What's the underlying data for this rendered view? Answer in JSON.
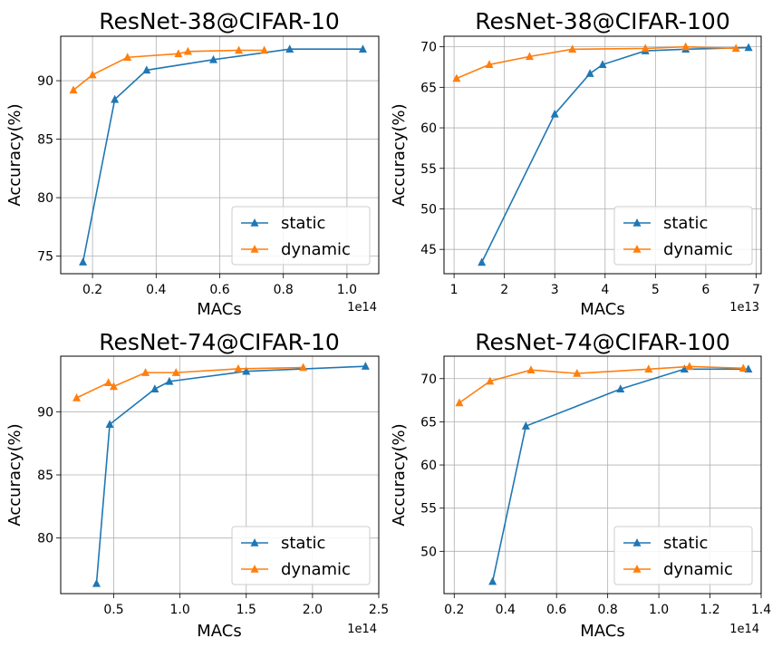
{
  "chart_data": [
    {
      "type": "line",
      "title": "ResNet-38@CIFAR-10",
      "xlabel": "MACs",
      "ylabel": "Accuracy(%)",
      "x_offset_text": "1e14",
      "xlim": [
        0.1,
        1.1
      ],
      "ylim": [
        73.5,
        93.8
      ],
      "xticks": [
        0.2,
        0.4,
        0.6,
        0.8,
        1.0
      ],
      "xtick_labels": [
        "0.2",
        "0.4",
        "0.6",
        "0.8",
        "1.0"
      ],
      "yticks": [
        75,
        80,
        85,
        90
      ],
      "ytick_labels": [
        "75",
        "80",
        "85",
        "90"
      ],
      "grid": true,
      "legend_position": "lower-right",
      "series": [
        {
          "name": "static",
          "color": "#1f77b4",
          "marker": "triangle",
          "x": [
            0.17,
            0.27,
            0.37,
            0.58,
            0.82,
            1.05
          ],
          "y": [
            74.5,
            88.4,
            90.9,
            91.8,
            92.7,
            92.7
          ]
        },
        {
          "name": "dynamic",
          "color": "#ff7f0e",
          "marker": "triangle",
          "x": [
            0.14,
            0.2,
            0.31,
            0.47,
            0.5,
            0.66,
            0.74
          ],
          "y": [
            89.2,
            90.5,
            92.0,
            92.3,
            92.5,
            92.6,
            92.6
          ]
        }
      ]
    },
    {
      "type": "line",
      "title": "ResNet-38@CIFAR-100",
      "xlabel": "MACs",
      "ylabel": "Accuracy(%)",
      "x_offset_text": "1e13",
      "xlim": [
        0.8,
        7.1
      ],
      "ylim": [
        42.0,
        71.3
      ],
      "xticks": [
        1,
        2,
        3,
        4,
        5,
        6,
        7
      ],
      "xtick_labels": [
        "1",
        "2",
        "3",
        "4",
        "5",
        "6",
        "7"
      ],
      "yticks": [
        45,
        50,
        55,
        60,
        65,
        70
      ],
      "ytick_labels": [
        "45",
        "50",
        "55",
        "60",
        "65",
        "70"
      ],
      "grid": true,
      "legend_position": "lower-right",
      "series": [
        {
          "name": "static",
          "color": "#1f77b4",
          "marker": "triangle",
          "x": [
            1.55,
            3.0,
            3.7,
            3.95,
            4.8,
            5.6,
            6.85
          ],
          "y": [
            43.4,
            61.7,
            66.7,
            67.8,
            69.5,
            69.7,
            69.9
          ]
        },
        {
          "name": "dynamic",
          "color": "#ff7f0e",
          "marker": "triangle",
          "x": [
            1.05,
            1.7,
            2.5,
            3.35,
            4.8,
            5.6,
            6.6
          ],
          "y": [
            66.1,
            67.8,
            68.8,
            69.7,
            69.8,
            70.0,
            69.8
          ]
        }
      ]
    },
    {
      "type": "line",
      "title": "ResNet-74@CIFAR-10",
      "xlabel": "MACs",
      "ylabel": "Accuracy(%)",
      "x_offset_text": "1e14",
      "xlim": [
        0.1,
        2.5
      ],
      "ylim": [
        75.6,
        94.4
      ],
      "xticks": [
        0.5,
        1.0,
        1.5,
        2.0,
        2.5
      ],
      "xtick_labels": [
        "0.5",
        "1.0",
        "1.5",
        "2.0",
        "2.5"
      ],
      "yticks": [
        80,
        85,
        90
      ],
      "ytick_labels": [
        "80",
        "85",
        "90"
      ],
      "grid": true,
      "legend_position": "lower-right",
      "series": [
        {
          "name": "static",
          "color": "#1f77b4",
          "marker": "triangle",
          "x": [
            0.37,
            0.47,
            0.81,
            0.92,
            1.5,
            2.4
          ],
          "y": [
            76.4,
            89.0,
            91.8,
            92.4,
            93.2,
            93.6
          ]
        },
        {
          "name": "dynamic",
          "color": "#ff7f0e",
          "marker": "triangle",
          "x": [
            0.22,
            0.46,
            0.5,
            0.74,
            0.97,
            1.44,
            1.93
          ],
          "y": [
            91.1,
            92.3,
            92.0,
            93.1,
            93.1,
            93.4,
            93.5
          ]
        }
      ]
    },
    {
      "type": "line",
      "title": "ResNet-74@CIFAR-100",
      "xlabel": "MACs",
      "ylabel": "Accuracy(%)",
      "x_offset_text": "1e14",
      "xlim": [
        0.16,
        1.4
      ],
      "ylim": [
        45.1,
        72.6
      ],
      "xticks": [
        0.2,
        0.4,
        0.6,
        0.8,
        1.0,
        1.2,
        1.4
      ],
      "xtick_labels": [
        "0.2",
        "0.4",
        "0.6",
        "0.8",
        "1.0",
        "1.2",
        "1.4"
      ],
      "yticks": [
        50,
        55,
        60,
        65,
        70
      ],
      "ytick_labels": [
        "50",
        "55",
        "60",
        "65",
        "70"
      ],
      "grid": true,
      "legend_position": "lower-right",
      "series": [
        {
          "name": "static",
          "color": "#1f77b4",
          "marker": "triangle",
          "x": [
            0.35,
            0.48,
            0.85,
            1.1,
            1.35
          ],
          "y": [
            46.5,
            64.5,
            68.8,
            71.1,
            71.1
          ]
        },
        {
          "name": "dynamic",
          "color": "#ff7f0e",
          "marker": "triangle",
          "x": [
            0.22,
            0.34,
            0.5,
            0.68,
            0.96,
            1.12,
            1.33
          ],
          "y": [
            67.2,
            69.7,
            71.0,
            70.6,
            71.1,
            71.4,
            71.2
          ]
        }
      ]
    }
  ]
}
